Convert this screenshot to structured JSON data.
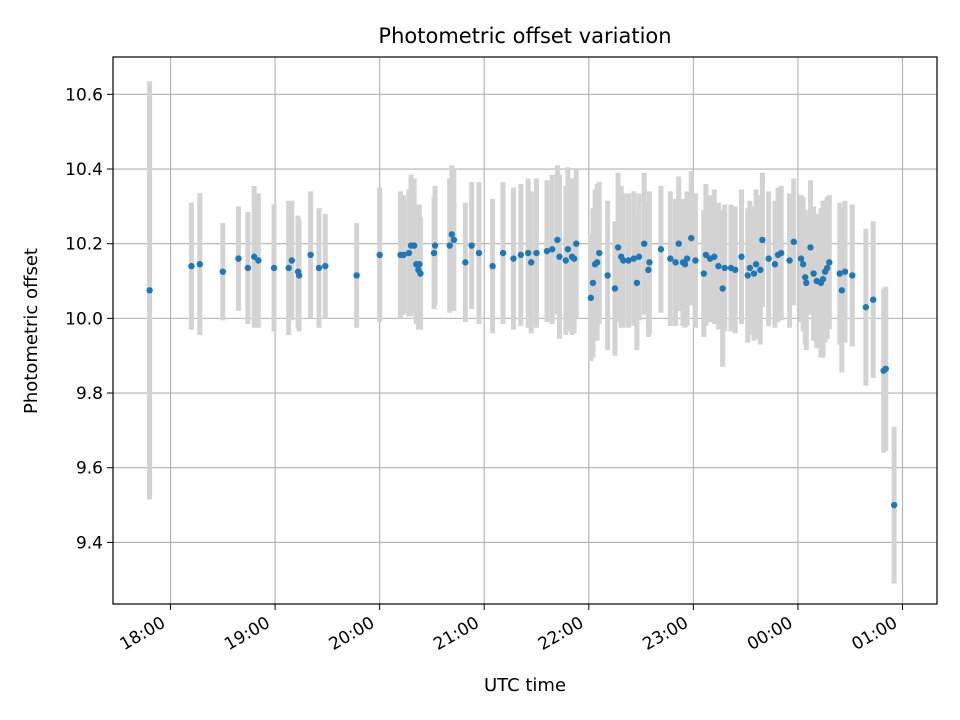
{
  "chart_data": {
    "type": "scatter",
    "title": "Photometric offset variation",
    "xlabel": "UTC time",
    "ylabel": "Photometric offset",
    "x_unit": "UTC hours (24+ = after midnight)",
    "xlim": [
      17.45,
      25.33
    ],
    "ylim": [
      9.235,
      10.7
    ],
    "x_ticks": [
      {
        "value": 18,
        "label": "18:00"
      },
      {
        "value": 19,
        "label": "19:00"
      },
      {
        "value": 20,
        "label": "20:00"
      },
      {
        "value": 21,
        "label": "21:00"
      },
      {
        "value": 22,
        "label": "22:00"
      },
      {
        "value": 23,
        "label": "23:00"
      },
      {
        "value": 24,
        "label": "00:00"
      },
      {
        "value": 25,
        "label": "01:00"
      }
    ],
    "y_ticks": [
      {
        "value": 9.4,
        "label": "9.4"
      },
      {
        "value": 9.6,
        "label": "9.6"
      },
      {
        "value": 9.8,
        "label": "9.8"
      },
      {
        "value": 10.0,
        "label": "10.0"
      },
      {
        "value": 10.2,
        "label": "10.2"
      },
      {
        "value": 10.4,
        "label": "10.4"
      },
      {
        "value": 10.6,
        "label": "10.6"
      }
    ],
    "grid": true,
    "colors": {
      "point": "#1f77b4",
      "errorbar": "#d3d3d3",
      "grid": "#b0b0b0"
    },
    "series": [
      {
        "points": [
          [
            17.8,
            10.075,
            0.56
          ],
          [
            18.2,
            10.14,
            0.17
          ],
          [
            18.28,
            10.145,
            0.19
          ],
          [
            18.5,
            10.125,
            0.13
          ],
          [
            18.65,
            10.16,
            0.14
          ],
          [
            18.74,
            10.135,
            0.15
          ],
          [
            18.8,
            10.165,
            0.19
          ],
          [
            18.84,
            10.155,
            0.18
          ],
          [
            18.99,
            10.135,
            0.17
          ],
          [
            19.13,
            10.135,
            0.18
          ],
          [
            19.16,
            10.155,
            0.16
          ],
          [
            19.22,
            10.125,
            0.15
          ],
          [
            19.23,
            10.115,
            0.15
          ],
          [
            19.34,
            10.17,
            0.17
          ],
          [
            19.42,
            10.135,
            0.16
          ],
          [
            19.48,
            10.14,
            0.14
          ],
          [
            19.78,
            10.115,
            0.14
          ],
          [
            20.0,
            10.17,
            0.18
          ],
          [
            20.2,
            10.17,
            0.17
          ],
          [
            20.23,
            10.17,
            0.16
          ],
          [
            20.28,
            10.175,
            0.17
          ],
          [
            20.3,
            10.195,
            0.19
          ],
          [
            20.33,
            10.195,
            0.18
          ],
          [
            20.35,
            10.145,
            0.16
          ],
          [
            20.37,
            10.13,
            0.16
          ],
          [
            20.38,
            10.145,
            0.16
          ],
          [
            20.39,
            10.12,
            0.15
          ],
          [
            20.52,
            10.175,
            0.15
          ],
          [
            20.53,
            10.195,
            0.16
          ],
          [
            20.67,
            10.195,
            0.18
          ],
          [
            20.69,
            10.225,
            0.185
          ],
          [
            20.71,
            10.21,
            0.19
          ],
          [
            20.82,
            10.15,
            0.16
          ],
          [
            20.88,
            10.195,
            0.17
          ],
          [
            20.95,
            10.175,
            0.19
          ],
          [
            21.08,
            10.14,
            0.18
          ],
          [
            21.18,
            10.175,
            0.19
          ],
          [
            21.28,
            10.16,
            0.19
          ],
          [
            21.35,
            10.17,
            0.19
          ],
          [
            21.42,
            10.175,
            0.2
          ],
          [
            21.45,
            10.15,
            0.19
          ],
          [
            21.5,
            10.175,
            0.2
          ],
          [
            21.6,
            10.18,
            0.19
          ],
          [
            21.65,
            10.185,
            0.2
          ],
          [
            21.7,
            10.21,
            0.2
          ],
          [
            21.72,
            10.165,
            0.22
          ],
          [
            21.78,
            10.155,
            0.2
          ],
          [
            21.8,
            10.185,
            0.22
          ],
          [
            21.84,
            10.165,
            0.21
          ],
          [
            21.86,
            10.16,
            0.2
          ],
          [
            21.88,
            10.2,
            0.2
          ],
          [
            22.02,
            10.055,
            0.17
          ],
          [
            22.04,
            10.095,
            0.2
          ],
          [
            22.06,
            10.145,
            0.2
          ],
          [
            22.08,
            10.15,
            0.21
          ],
          [
            22.1,
            10.175,
            0.19
          ],
          [
            22.18,
            10.115,
            0.2
          ],
          [
            22.25,
            10.08,
            0.18
          ],
          [
            22.28,
            10.19,
            0.2
          ],
          [
            22.31,
            10.165,
            0.19
          ],
          [
            22.33,
            10.155,
            0.18
          ],
          [
            22.38,
            10.155,
            0.18
          ],
          [
            22.43,
            10.16,
            0.18
          ],
          [
            22.46,
            10.095,
            0.18
          ],
          [
            22.48,
            10.165,
            0.17
          ],
          [
            22.53,
            10.2,
            0.19
          ],
          [
            22.57,
            10.13,
            0.18
          ],
          [
            22.58,
            10.15,
            0.19
          ],
          [
            22.69,
            10.185,
            0.17
          ],
          [
            22.78,
            10.16,
            0.18
          ],
          [
            22.83,
            10.15,
            0.17
          ],
          [
            22.86,
            10.2,
            0.18
          ],
          [
            22.9,
            10.15,
            0.17
          ],
          [
            22.92,
            10.145,
            0.17
          ],
          [
            22.94,
            10.16,
            0.18
          ],
          [
            22.98,
            10.215,
            0.18
          ],
          [
            23.02,
            10.155,
            0.18
          ],
          [
            23.1,
            10.12,
            0.17
          ],
          [
            23.12,
            10.17,
            0.19
          ],
          [
            23.16,
            10.16,
            0.17
          ],
          [
            23.2,
            10.165,
            0.18
          ],
          [
            23.24,
            10.14,
            0.17
          ],
          [
            23.28,
            10.08,
            0.21
          ],
          [
            23.3,
            10.135,
            0.17
          ],
          [
            23.36,
            10.135,
            0.17
          ],
          [
            23.4,
            10.13,
            0.17
          ],
          [
            23.46,
            10.165,
            0.18
          ],
          [
            23.52,
            10.115,
            0.18
          ],
          [
            23.54,
            10.135,
            0.18
          ],
          [
            23.58,
            10.12,
            0.18
          ],
          [
            23.6,
            10.145,
            0.2
          ],
          [
            23.64,
            10.13,
            0.2
          ],
          [
            23.66,
            10.21,
            0.18
          ],
          [
            23.72,
            10.16,
            0.18
          ],
          [
            23.78,
            10.145,
            0.17
          ],
          [
            23.81,
            10.17,
            0.18
          ],
          [
            23.84,
            10.175,
            0.18
          ],
          [
            23.92,
            10.155,
            0.18
          ],
          [
            23.96,
            10.205,
            0.17
          ],
          [
            24.03,
            10.16,
            0.17
          ],
          [
            24.05,
            10.145,
            0.18
          ],
          [
            24.07,
            10.11,
            0.18
          ],
          [
            24.08,
            10.095,
            0.18
          ],
          [
            24.12,
            10.19,
            0.18
          ],
          [
            24.15,
            10.12,
            0.18
          ],
          [
            24.18,
            10.1,
            0.18
          ],
          [
            24.22,
            10.095,
            0.2
          ],
          [
            24.24,
            10.105,
            0.21
          ],
          [
            24.26,
            10.125,
            0.19
          ],
          [
            24.28,
            10.135,
            0.19
          ],
          [
            24.3,
            10.15,
            0.18
          ],
          [
            24.4,
            10.12,
            0.19
          ],
          [
            24.42,
            10.075,
            0.22
          ],
          [
            24.45,
            10.125,
            0.19
          ],
          [
            24.52,
            10.115,
            0.19
          ],
          [
            24.65,
            10.03,
            0.21
          ],
          [
            24.72,
            10.05,
            0.21
          ],
          [
            24.82,
            9.86,
            0.22
          ],
          [
            24.84,
            9.865,
            0.22
          ],
          [
            24.92,
            9.5,
            0.21
          ]
        ]
      }
    ]
  }
}
